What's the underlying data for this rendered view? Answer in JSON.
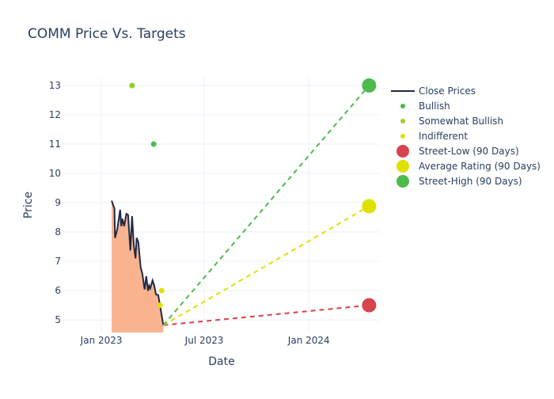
{
  "chart_data": {
    "type": "line",
    "title": "COMM Price Vs. Targets",
    "xlabel": "Date",
    "ylabel": "Price",
    "xlim": [
      "2022-10-26",
      "2024-05-05"
    ],
    "ylim": [
      4.57,
      13.27
    ],
    "grid": true,
    "legend_placement": "right",
    "x_ticks": [
      {
        "date": "2023-01-01",
        "label": "Jan 2023"
      },
      {
        "date": "2023-07-01",
        "label": "Jul 2023"
      },
      {
        "date": "2024-01-01",
        "label": "Jan 2024"
      }
    ],
    "y_ticks": [
      5,
      6,
      7,
      8,
      9,
      10,
      11,
      12,
      13
    ],
    "close_prices": {
      "name": "Close Prices",
      "color": "#1f2a44",
      "fill_color": "#f9b48f",
      "x": [
        "2023-01-19",
        "2023-01-24",
        "2023-01-25",
        "2023-01-29",
        "2023-02-03",
        "2023-02-05",
        "2023-02-07",
        "2023-02-10",
        "2023-02-14",
        "2023-02-17",
        "2023-02-21",
        "2023-02-24",
        "2023-02-27",
        "2023-03-02",
        "2023-03-04",
        "2023-03-07",
        "2023-03-11",
        "2023-03-14",
        "2023-03-18",
        "2023-03-21",
        "2023-03-24",
        "2023-03-26",
        "2023-03-28",
        "2023-04-01",
        "2023-04-04",
        "2023-04-07",
        "2023-04-11",
        "2023-04-20"
      ],
      "y": [
        9.07,
        8.8,
        7.8,
        8.1,
        8.76,
        8.2,
        8.45,
        8.2,
        8.62,
        8.58,
        7.37,
        8.54,
        7.55,
        7.1,
        7.8,
        7.65,
        6.8,
        6.58,
        6.04,
        6.49,
        5.99,
        6.17,
        6.08,
        6.35,
        6.17,
        5.87,
        5.85,
        4.82
      ]
    },
    "ratings": [
      {
        "name": "Bullish",
        "color": "#4cbb4c",
        "points": [
          {
            "x": "2023-04-03",
            "y": 11
          }
        ]
      },
      {
        "name": "Somewhat Bullish",
        "color": "#92d022",
        "points": [
          {
            "x": "2023-02-24",
            "y": 13
          }
        ]
      },
      {
        "name": "Indifferent",
        "color": "#e0e000",
        "points": [
          {
            "x": "2023-04-17",
            "y": 6
          },
          {
            "x": "2023-04-14",
            "y": 5.5
          }
        ]
      }
    ],
    "targets": [
      {
        "name": "Street-Low (90 Days)",
        "color": "#d9434b",
        "x": "2024-04-16",
        "y": 5.5
      },
      {
        "name": "Average Rating (90 Days)",
        "color": "#e0e000",
        "x": "2024-04-16",
        "y": 8.88
      },
      {
        "name": "Street-High (90 Days)",
        "color": "#4cbb4c",
        "x": "2024-04-16",
        "y": 13
      }
    ]
  }
}
